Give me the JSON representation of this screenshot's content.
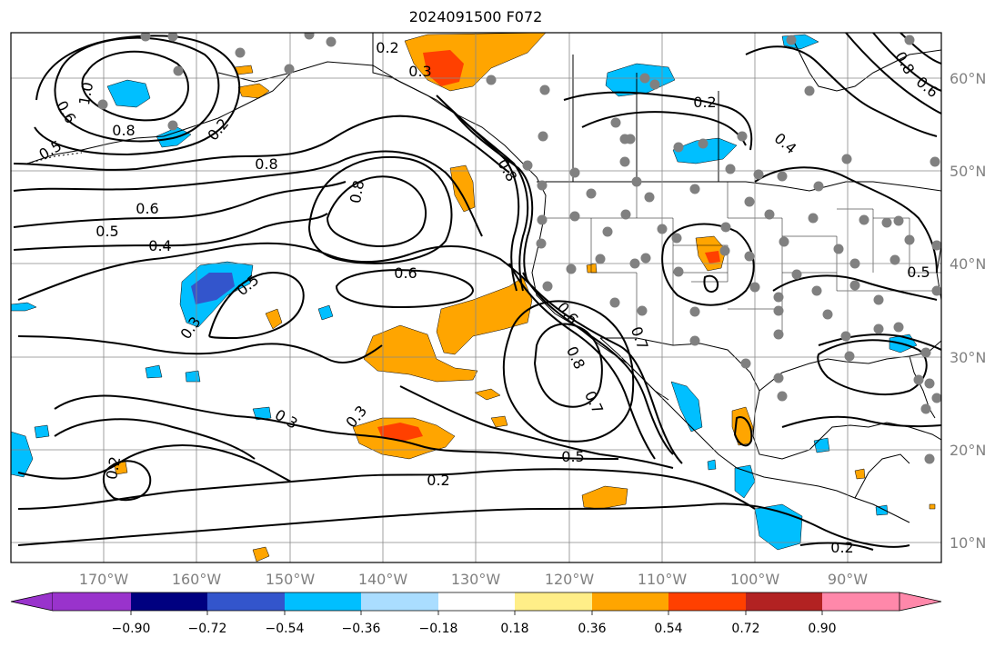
{
  "title": "2024091500 F072",
  "map": {
    "projection": "PlateCarree",
    "lon_range": [
      -180,
      -80
    ],
    "lat_range": [
      8,
      65
    ],
    "lon_ticks": [
      "170°W",
      "160°W",
      "150°W",
      "140°W",
      "130°W",
      "120°W",
      "110°W",
      "100°W",
      "90°W"
    ],
    "lat_ticks": [
      "60°N",
      "50°N",
      "40°N",
      "30°N",
      "20°N",
      "10°N"
    ],
    "gridlines": true
  },
  "contour_labels": [
    "0.2",
    "0.3",
    "0.2",
    "1.0",
    "0.6",
    "0.8",
    "0.5",
    "0.8",
    "0.6",
    "0.5",
    "0.4",
    "0.8",
    "0.5",
    "0.3",
    "0.6",
    "0.8",
    "0.6",
    "0.7",
    "0.8",
    "0.7",
    "0.5",
    "0.3",
    "0.3",
    "0.2",
    "0.2",
    "0.4",
    "0.8",
    "0.6",
    "0.5",
    "0.2",
    "0.2"
  ],
  "colorbar": {
    "ticks": [
      "−0.90",
      "−0.72",
      "−0.54",
      "−0.36",
      "−0.18",
      "0.18",
      "0.36",
      "0.54",
      "0.72",
      "0.90"
    ],
    "colors": [
      "#9933cc",
      "#000080",
      "#3355cc",
      "#00bfff",
      "#aaddff",
      "#ffffff",
      "#ffee88",
      "#ffa500",
      "#ff4000",
      "#b22222",
      "#ff88aa"
    ],
    "extend": "both"
  },
  "station_marker_color": "#808080"
}
